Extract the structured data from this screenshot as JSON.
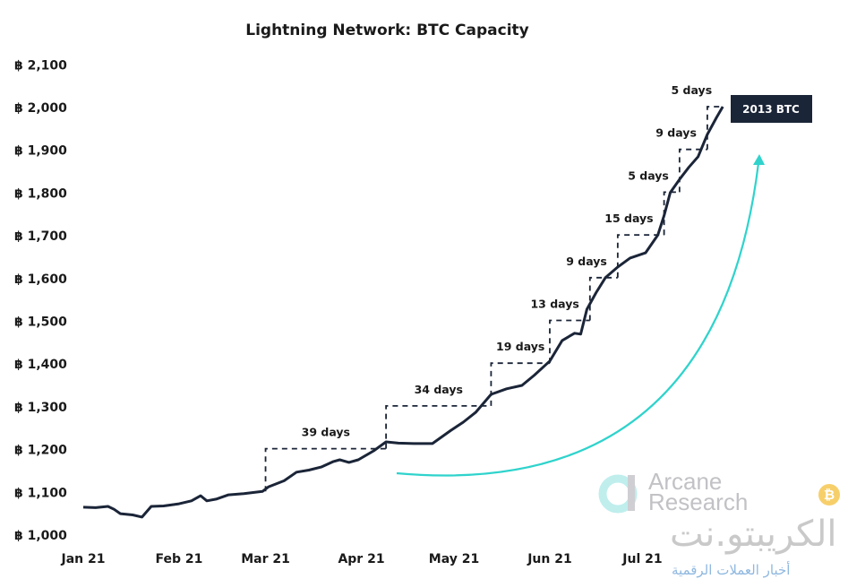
{
  "chart_data": {
    "type": "line",
    "title": "Lightning Network: BTC Capacity",
    "xlabel": "",
    "ylabel": "",
    "ylim": [
      1000,
      2100
    ],
    "xlim": [
      "2021-01-01",
      "2021-07-31"
    ],
    "y_ticks": [
      "฿ 1,000",
      "฿ 1,100",
      "฿ 1,200",
      "฿ 1,300",
      "฿ 1,400",
      "฿ 1,500",
      "฿ 1,600",
      "฿ 1,700",
      "฿ 1,800",
      "฿ 1,900",
      "฿ 2,000",
      "฿ 2,100"
    ],
    "y_tick_values": [
      1000,
      1100,
      1200,
      1300,
      1400,
      1500,
      1600,
      1700,
      1800,
      1900,
      2000,
      2100
    ],
    "x_ticks": [
      {
        "label": "Jan 21",
        "date": "2021-01-01"
      },
      {
        "label": "Feb 21",
        "date": "2021-02-01"
      },
      {
        "label": "Mar 21",
        "date": "2021-03-01"
      },
      {
        "label": "Apr 21",
        "date": "2021-04-01"
      },
      {
        "label": "May 21",
        "date": "2021-05-01"
      },
      {
        "label": "Jun 21",
        "date": "2021-06-01"
      },
      {
        "label": "Jul 21",
        "date": "2021-07-01"
      }
    ],
    "grid": false,
    "line_color": "#1b2538",
    "accent_color": "#2fd3cc",
    "series": [
      {
        "x": [
          "2021-01-01",
          "2021-01-05",
          "2021-01-09",
          "2021-01-11",
          "2021-01-13",
          "2021-01-17",
          "2021-01-20",
          "2021-01-23",
          "2021-01-27",
          "2021-02-01",
          "2021-02-05",
          "2021-02-08",
          "2021-02-10",
          "2021-02-13",
          "2021-02-17",
          "2021-02-22",
          "2021-02-28",
          "2021-03-02",
          "2021-03-07",
          "2021-03-11",
          "2021-03-15",
          "2021-03-19",
          "2021-03-23",
          "2021-03-25",
          "2021-03-28",
          "2021-03-31",
          "2021-04-05",
          "2021-04-09",
          "2021-04-13",
          "2021-04-18",
          "2021-04-24",
          "2021-04-30",
          "2021-05-04",
          "2021-05-08",
          "2021-05-13",
          "2021-05-18",
          "2021-05-23",
          "2021-05-27",
          "2021-06-01",
          "2021-06-05",
          "2021-06-09",
          "2021-06-11",
          "2021-06-13",
          "2021-06-16",
          "2021-06-19",
          "2021-06-23",
          "2021-06-27",
          "2021-07-02",
          "2021-07-06",
          "2021-07-08",
          "2021-07-10",
          "2021-07-13",
          "2021-07-16",
          "2021-07-19",
          "2021-07-22",
          "2021-07-25",
          "2021-07-27"
        ],
        "values": [
          1063,
          1062,
          1065,
          1058,
          1048,
          1045,
          1040,
          1065,
          1066,
          1071,
          1078,
          1090,
          1078,
          1082,
          1092,
          1095,
          1100,
          1111,
          1125,
          1145,
          1150,
          1157,
          1170,
          1174,
          1168,
          1174,
          1195,
          1216,
          1213,
          1212,
          1212,
          1243,
          1262,
          1285,
          1327,
          1340,
          1348,
          1372,
          1405,
          1453,
          1470,
          1468,
          1526,
          1565,
          1600,
          1625,
          1646,
          1658,
          1700,
          1745,
          1799,
          1830,
          1858,
          1883,
          1935,
          1975,
          2000
        ]
      }
    ],
    "steps": [
      {
        "from": 1100,
        "to": 1200,
        "start": "2021-03-01",
        "end": "2021-04-09",
        "label": "39 days"
      },
      {
        "from": 1200,
        "to": 1300,
        "start": "2021-04-09",
        "end": "2021-05-13",
        "label": "34 days"
      },
      {
        "from": 1300,
        "to": 1400,
        "start": "2021-05-13",
        "end": "2021-06-01",
        "label": "19 days"
      },
      {
        "from": 1400,
        "to": 1500,
        "start": "2021-06-01",
        "end": "2021-06-14",
        "label": "13 days"
      },
      {
        "from": 1500,
        "to": 1600,
        "start": "2021-06-14",
        "end": "2021-06-23",
        "label": "9 days"
      },
      {
        "from": 1600,
        "to": 1700,
        "start": "2021-06-23",
        "end": "2021-07-08",
        "label": "15 days"
      },
      {
        "from": 1700,
        "to": 1800,
        "start": "2021-07-08",
        "end": "2021-07-13",
        "label": "5 days"
      },
      {
        "from": 1800,
        "to": 1900,
        "start": "2021-07-13",
        "end": "2021-07-22",
        "label": "9 days"
      },
      {
        "from": 1900,
        "to": 2000,
        "start": "2021-07-22",
        "end": "2021-07-27",
        "label": "5 days"
      }
    ],
    "callout": {
      "text": "2013 BTC",
      "color": "#1b2538"
    }
  },
  "watermarks": {
    "arcane": "Arcane Research",
    "arabic_site": "الكريبتو.نت",
    "arabic_tagline": "أخبار العملات الرقمية"
  }
}
